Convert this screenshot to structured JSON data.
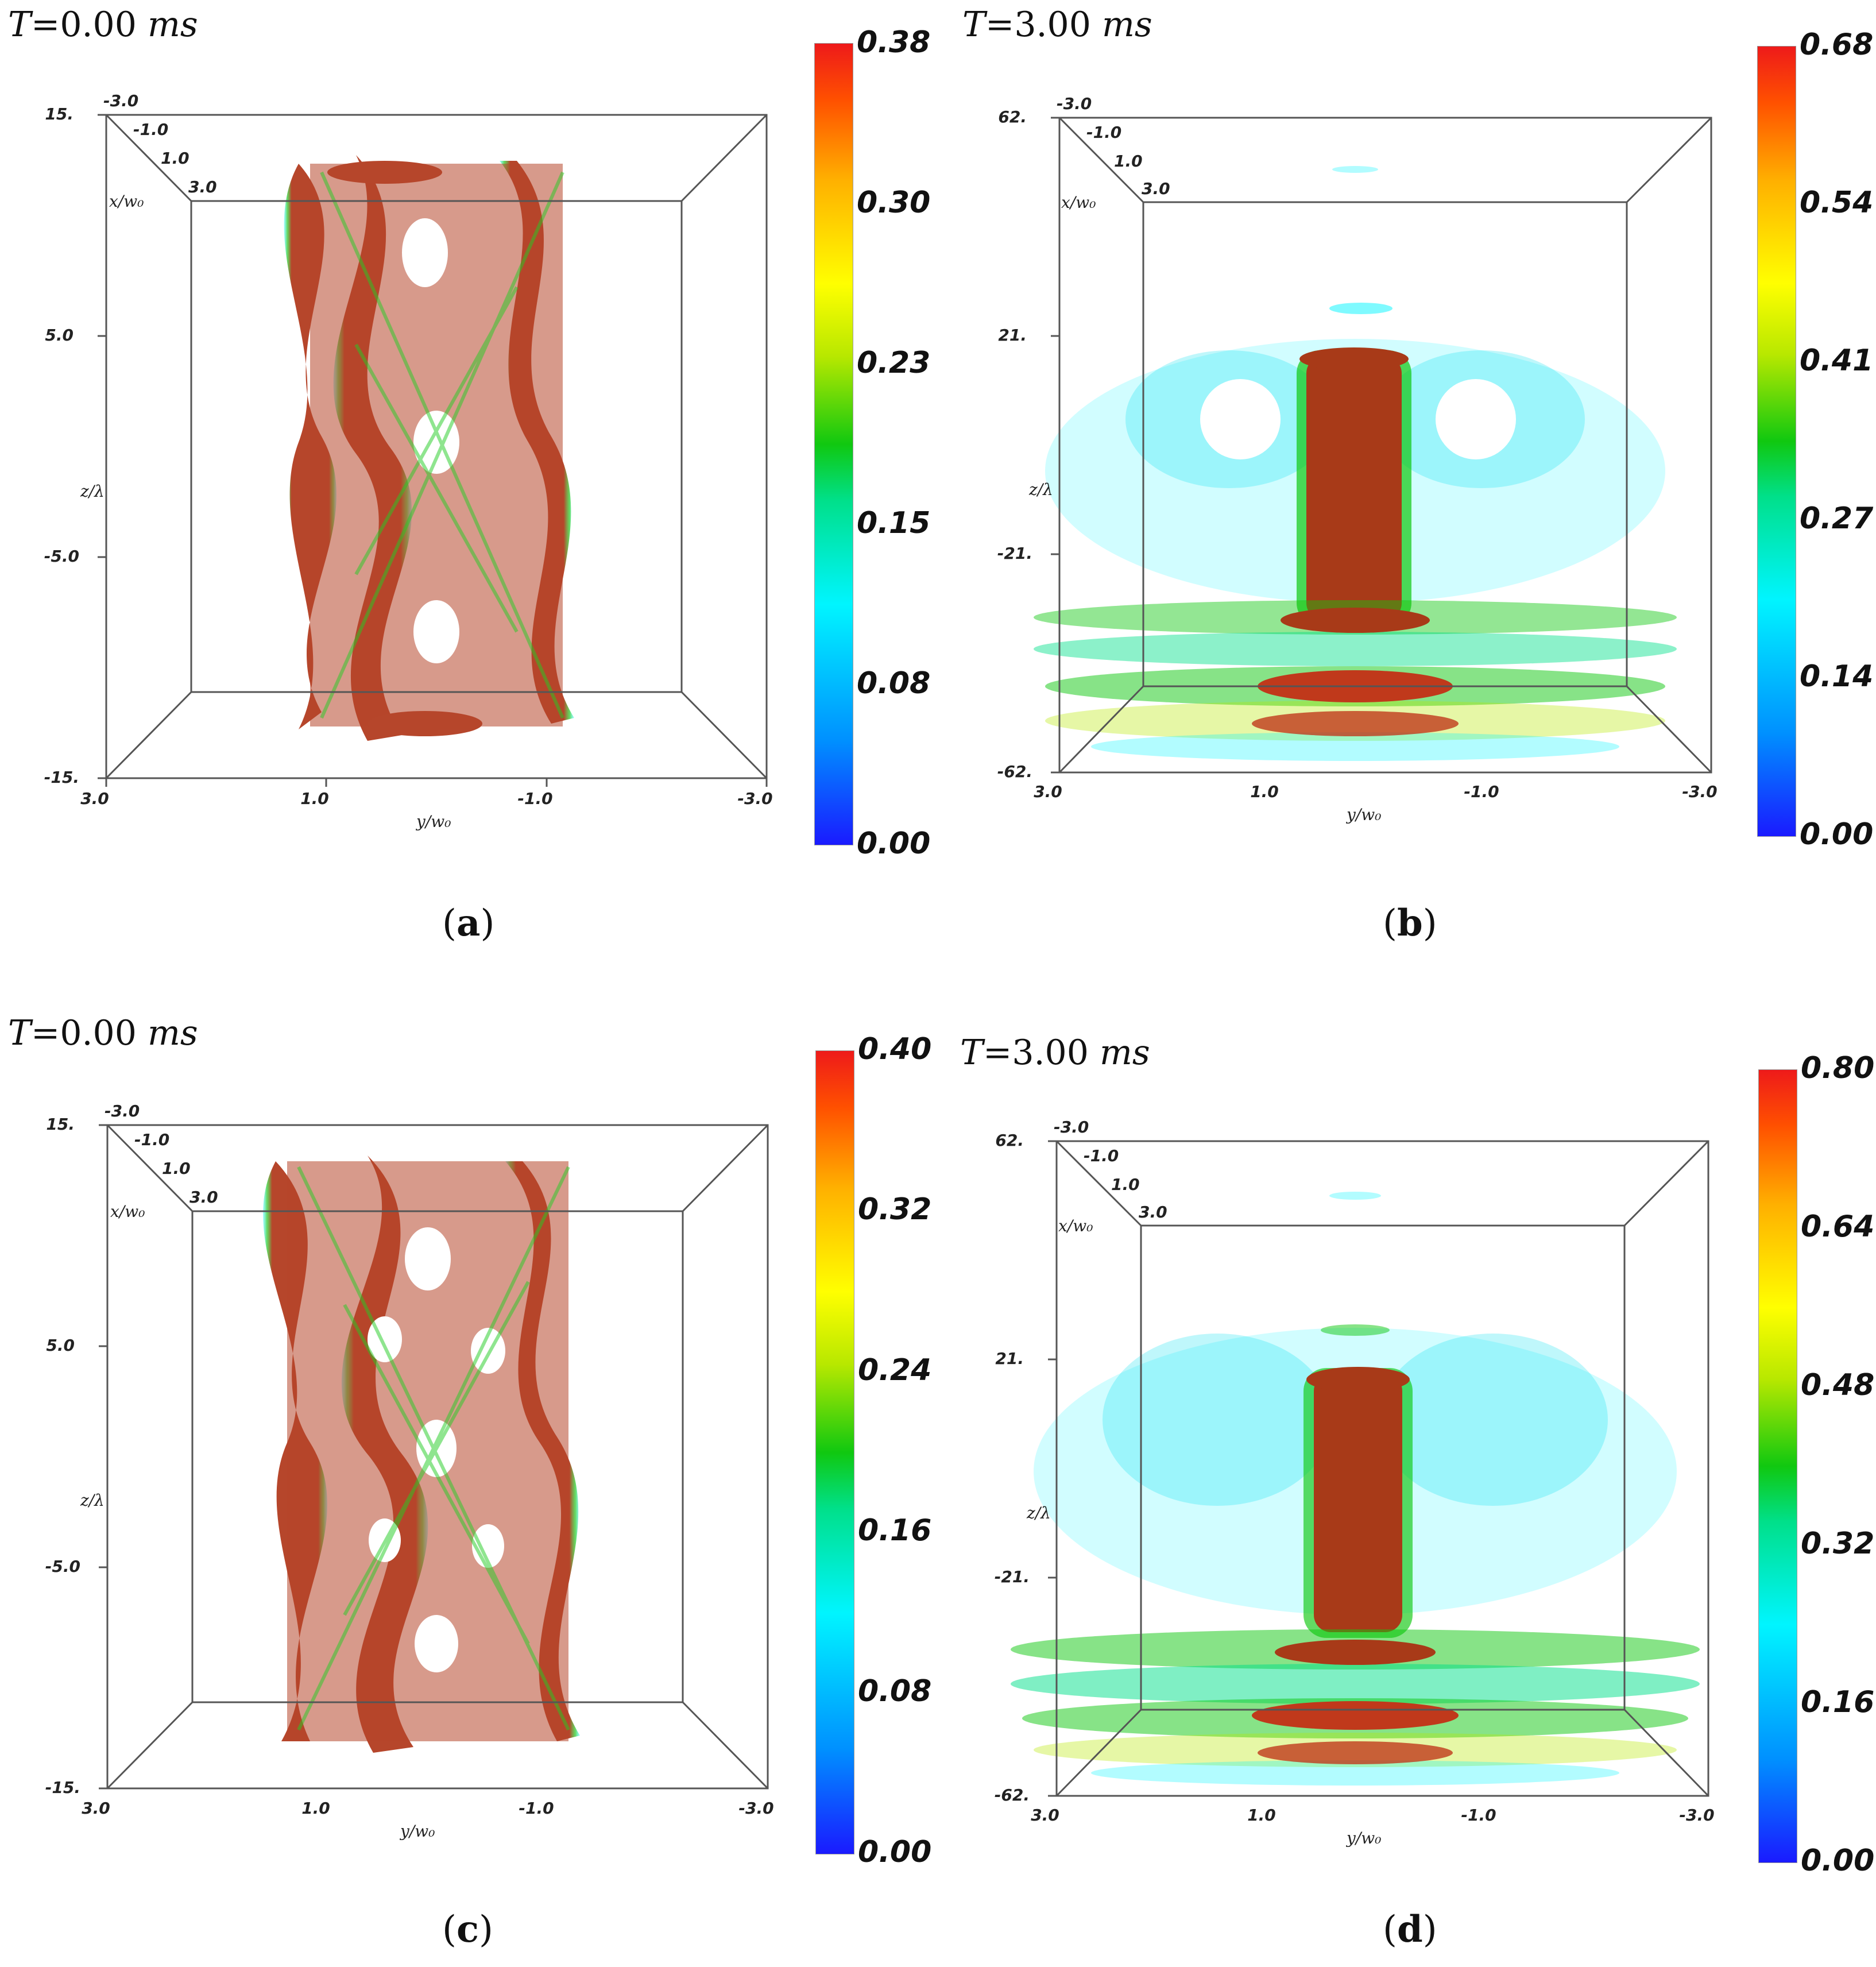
{
  "panels": {
    "a": {
      "title": {
        "var": "T",
        "eq": "=",
        "value": "0.00",
        "unit": "ms"
      },
      "caption": "a",
      "axes": {
        "z_ticks": [
          "15.",
          "5.0",
          "-5.0",
          "-15."
        ],
        "x_ticks": [
          "-3.0",
          "-1.0",
          "1.0",
          "3.0"
        ],
        "y_ticks": [
          "3.0",
          "1.0",
          "-1.0",
          "-3.0"
        ],
        "x_label": "x/w₀",
        "y_label": "y/w₀",
        "z_label": "z/λ"
      },
      "colorbar": {
        "ticks": [
          "0.38",
          "0.30",
          "0.23",
          "0.15",
          "0.08",
          "0.00"
        ],
        "min": 0.0,
        "max": 0.38
      }
    },
    "b": {
      "title": {
        "var": "T",
        "eq": "=",
        "value": "3.00",
        "unit": "ms"
      },
      "caption": "b",
      "axes": {
        "z_ticks": [
          "62.",
          "21.",
          "-21.",
          "-62."
        ],
        "x_ticks": [
          "-3.0",
          "-1.0",
          "1.0",
          "3.0"
        ],
        "y_ticks": [
          "3.0",
          "1.0",
          "-1.0",
          "-3.0"
        ],
        "x_label": "x/w₀",
        "y_label": "y/w₀",
        "z_label": "z/λ"
      },
      "colorbar": {
        "ticks": [
          "0.68",
          "0.54",
          "0.41",
          "0.27",
          "0.14",
          "0.00"
        ],
        "min": 0.0,
        "max": 0.68
      }
    },
    "c": {
      "title": {
        "var": "T",
        "eq": "=",
        "value": "0.00",
        "unit": "ms"
      },
      "caption": "c",
      "axes": {
        "z_ticks": [
          "15.",
          "5.0",
          "-5.0",
          "-15."
        ],
        "x_ticks": [
          "-3.0",
          "-1.0",
          "1.0",
          "3.0"
        ],
        "y_ticks": [
          "3.0",
          "1.0",
          "-1.0",
          "-3.0"
        ],
        "x_label": "x/w₀",
        "y_label": "y/w₀",
        "z_label": "z/λ"
      },
      "colorbar": {
        "ticks": [
          "0.40",
          "0.32",
          "0.24",
          "0.16",
          "0.08",
          "0.00"
        ],
        "min": 0.0,
        "max": 0.4
      }
    },
    "d": {
      "title": {
        "var": "T",
        "eq": "=",
        "value": "3.00",
        "unit": "ms"
      },
      "caption": "d",
      "axes": {
        "z_ticks": [
          "62.",
          "21.",
          "-21.",
          "-62."
        ],
        "x_ticks": [
          "-3.0",
          "-1.0",
          "1.0",
          "3.0"
        ],
        "y_ticks": [
          "3.0",
          "1.0",
          "-1.0",
          "-3.0"
        ],
        "x_label": "x/w₀",
        "y_label": "y/w₀",
        "z_label": "z/λ"
      },
      "colorbar": {
        "ticks": [
          "0.80",
          "0.64",
          "0.48",
          "0.32",
          "0.16",
          "0.00"
        ],
        "min": 0.0,
        "max": 0.8
      }
    }
  },
  "colors": {
    "high": "#c0391b",
    "mid": "#10c810",
    "low": "#00f5ff",
    "frame": "#555555"
  }
}
